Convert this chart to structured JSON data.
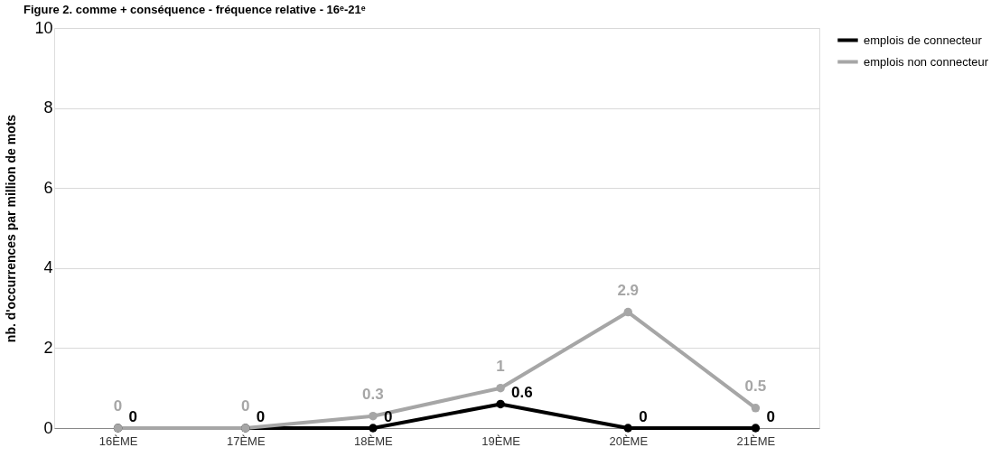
{
  "chart_data": {
    "type": "line",
    "title": "Figure 2. comme + conséquence - fréquence relative - 16ᵉ-21ᵉ",
    "ylabel": "nb. d'occurrences par million de mots",
    "categories": [
      "16ÈME",
      "17ÈME",
      "18ÈME",
      "19ÈME",
      "20ÈME",
      "21ÈME"
    ],
    "series": [
      {
        "name": "emplois de connecteur",
        "color": "#000000",
        "values": [
          0,
          0,
          0,
          0.6,
          0,
          0
        ]
      },
      {
        "name": "emplois non connecteur",
        "color": "#a6a6a6",
        "values": [
          0,
          0,
          0.3,
          1,
          2.9,
          0.5
        ]
      }
    ],
    "ylim": [
      0,
      10
    ],
    "yticks": [
      0,
      2,
      4,
      6,
      8,
      10
    ],
    "grid": "y",
    "legend": "right",
    "marker": "circle",
    "line_style": "solid",
    "data_labels": true
  }
}
